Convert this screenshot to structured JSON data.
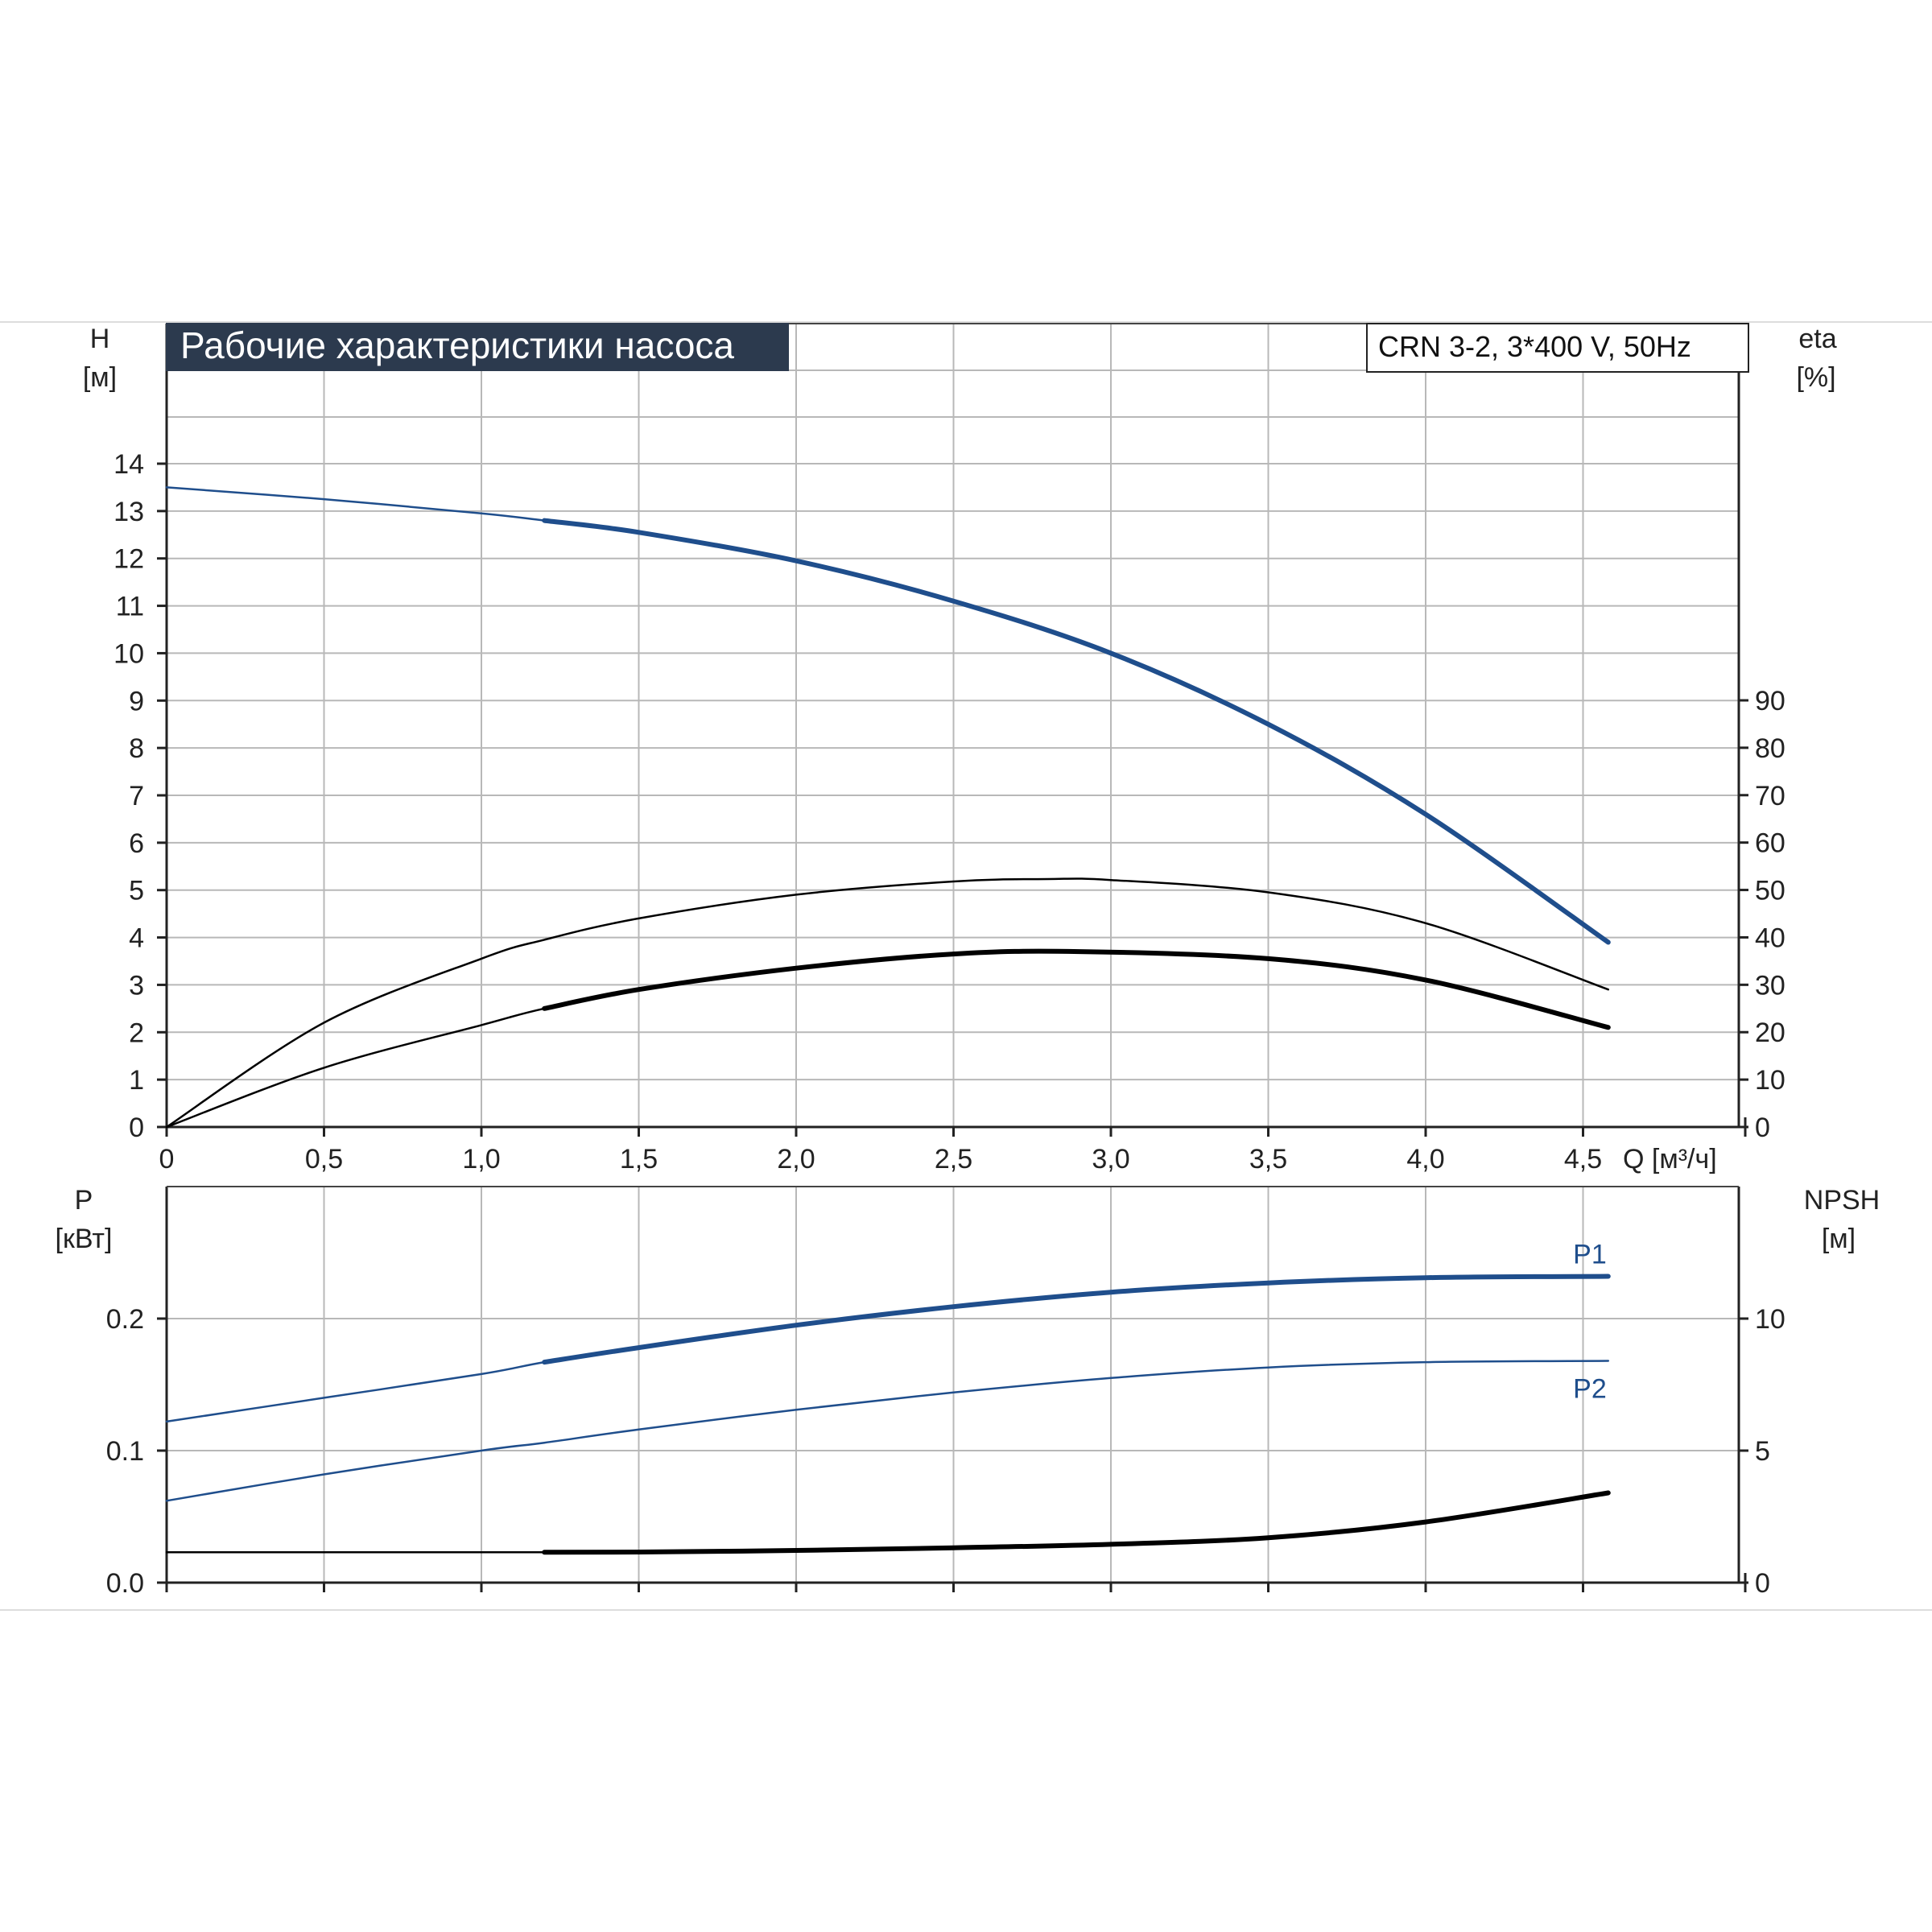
{
  "chart_data": [
    {
      "type": "line",
      "title": "Рабочие характеристики насоса",
      "model_label": "CRN 3-2, 3*400 V, 50Hz",
      "xlabel": "Q [м³/ч]",
      "x_ticks": [
        "0",
        "0,5",
        "1,0",
        "1,5",
        "2,0",
        "2,5",
        "3,0",
        "3,5",
        "4,0",
        "4,5"
      ],
      "x_tick_values": [
        0,
        0.5,
        1.0,
        1.5,
        2.0,
        2.5,
        3.0,
        3.5,
        4.0,
        4.5
      ],
      "xlim": [
        0,
        5.0
      ],
      "left_axis": {
        "label_line1": "H",
        "label_line2": "[м]",
        "ticks": [
          "0",
          "1",
          "2",
          "3",
          "4",
          "5",
          "6",
          "7",
          "8",
          "9",
          "10",
          "11",
          "12",
          "13",
          "14"
        ],
        "tick_values": [
          0,
          1,
          2,
          3,
          4,
          5,
          6,
          7,
          8,
          9,
          10,
          11,
          12,
          13,
          14
        ],
        "ylim": [
          0,
          16
        ]
      },
      "right_axis": {
        "label_line1": "eta",
        "label_line2": "[%]",
        "ticks": [
          "0",
          "10",
          "20",
          "30",
          "40",
          "50",
          "60",
          "70",
          "80",
          "90"
        ],
        "tick_values": [
          0,
          10,
          20,
          30,
          40,
          50,
          60,
          70,
          80,
          90
        ],
        "ylim": [
          0,
          160
        ]
      },
      "grid": true,
      "series": [
        {
          "color": "#1f4e8c",
          "axis": "left",
          "bold_from": 1.2,
          "x": [
            0,
            0.5,
            1.0,
            1.2,
            1.5,
            2.0,
            2.5,
            3.0,
            3.5,
            4.0,
            4.58
          ],
          "y": [
            13.5,
            13.25,
            12.95,
            12.8,
            12.55,
            11.95,
            11.1,
            10.0,
            8.5,
            6.6,
            3.9
          ]
        },
        {
          "color": "#000000",
          "axis": "right",
          "bold_from": 99,
          "x": [
            0,
            0.5,
            1.0,
            1.2,
            1.5,
            2.0,
            2.5,
            2.8,
            3.0,
            3.5,
            4.0,
            4.58
          ],
          "y": [
            0,
            22,
            35.5,
            39.5,
            44,
            49,
            51.8,
            52.3,
            52.1,
            49.5,
            43,
            29
          ]
        },
        {
          "color": "#000000",
          "axis": "right",
          "bold_from": 1.2,
          "x": [
            0,
            0.5,
            1.0,
            1.2,
            1.5,
            2.0,
            2.5,
            2.9,
            3.5,
            4.0,
            4.58
          ],
          "y": [
            0,
            12.5,
            21.5,
            25,
            29,
            33.5,
            36.5,
            37,
            35.5,
            31,
            21
          ]
        }
      ]
    },
    {
      "type": "line",
      "xlim": [
        0,
        5.0
      ],
      "left_axis": {
        "label_line1": "P",
        "label_line2": "[кВт]",
        "ticks": [
          "0.0",
          "0.1",
          "0.2"
        ],
        "tick_values": [
          0,
          0.1,
          0.2
        ],
        "ylim": [
          0,
          0.25
        ]
      },
      "right_axis": {
        "label_line1": "NPSH",
        "label_line2": "[м]",
        "ticks": [
          "0",
          "5",
          "10"
        ],
        "tick_values": [
          0,
          5,
          10
        ],
        "ylim": [
          0,
          12.5
        ]
      },
      "grid": true,
      "series": [
        {
          "name": "P1",
          "color": "#1f4e8c",
          "axis": "left",
          "bold_from": 1.2,
          "x": [
            0,
            0.5,
            1.0,
            1.2,
            1.5,
            2.0,
            2.5,
            3.0,
            3.5,
            4.0,
            4.58
          ],
          "y": [
            0.122,
            0.14,
            0.158,
            0.167,
            0.178,
            0.195,
            0.209,
            0.22,
            0.227,
            0.231,
            0.232
          ]
        },
        {
          "name": "P2",
          "color": "#1f4e8c",
          "axis": "left",
          "bold_from": 99,
          "x": [
            0,
            0.5,
            1.0,
            1.2,
            1.5,
            2.0,
            2.5,
            3.0,
            3.5,
            4.0,
            4.58
          ],
          "y": [
            0.062,
            0.082,
            0.1,
            0.106,
            0.116,
            0.131,
            0.144,
            0.155,
            0.163,
            0.167,
            0.168
          ]
        },
        {
          "color": "#000000",
          "axis": "right",
          "bold_from": 1.2,
          "x": [
            0,
            0.5,
            1.0,
            1.2,
            1.5,
            2.0,
            2.5,
            3.0,
            3.5,
            4.0,
            4.58
          ],
          "y": [
            1.15,
            1.15,
            1.15,
            1.15,
            1.16,
            1.22,
            1.32,
            1.45,
            1.7,
            2.3,
            3.4
          ]
        }
      ]
    }
  ]
}
